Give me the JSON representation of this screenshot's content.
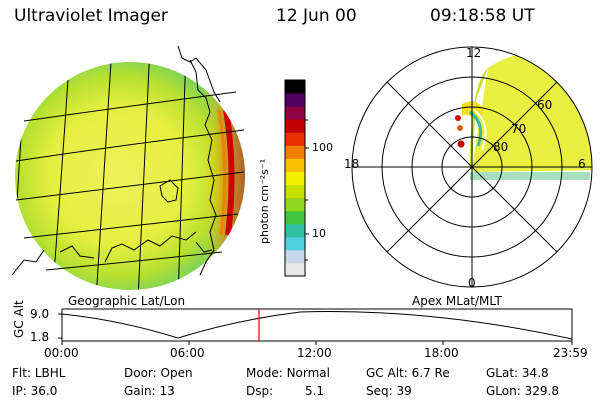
{
  "header": {
    "instrument": "Ultraviolet Imager",
    "date": "12 Jun 00",
    "time": "09:18:58 UT"
  },
  "colorbar": {
    "unit_label": "photon cm⁻²s⁻¹",
    "tick_labels": [
      "100",
      "10"
    ],
    "colors": [
      "#e8e8e8",
      "#c8d8e8",
      "#50d0e0",
      "#30c0a0",
      "#40c840",
      "#90d820",
      "#c8e000",
      "#f0f000",
      "#f8c000",
      "#f08000",
      "#e83000",
      "#c00000",
      "#900040",
      "#500060",
      "#000000"
    ]
  },
  "globe_panel": {
    "label": "Geographic Lat/Lon"
  },
  "polar_panel": {
    "label": "Apex MLat/MLT",
    "mlt_labels": {
      "top": "12",
      "left": "18",
      "right": "6",
      "bottom": "0"
    },
    "mlat_labels": [
      "60",
      "70",
      "80"
    ]
  },
  "altitude_plot": {
    "axis_label": "GC Alt",
    "y_ticks": [
      "9.0",
      "1.8"
    ],
    "x_ticks": [
      "00:00",
      "06:00",
      "12:00",
      "18:00",
      "23:59"
    ],
    "marker_time": "09:18:58",
    "marker_color": "#e00000"
  },
  "info": {
    "row1": [
      {
        "key": "Flt:",
        "value": "LBHL"
      },
      {
        "key": "Door:",
        "value": "Open"
      },
      {
        "key": "Mode:",
        "value": "Normal"
      },
      {
        "key": "GC Alt:",
        "value": "6.7 Re"
      },
      {
        "key": "GLat:",
        "value": "34.8"
      }
    ],
    "row2": [
      {
        "key": "IP:",
        "value": "36.0"
      },
      {
        "key": "Gain:",
        "value": "13"
      },
      {
        "key": "Dsp:",
        "value": "5.1"
      },
      {
        "key": "Seq:",
        "value": "39"
      },
      {
        "key": "GLon:",
        "value": "329.8"
      }
    ]
  }
}
